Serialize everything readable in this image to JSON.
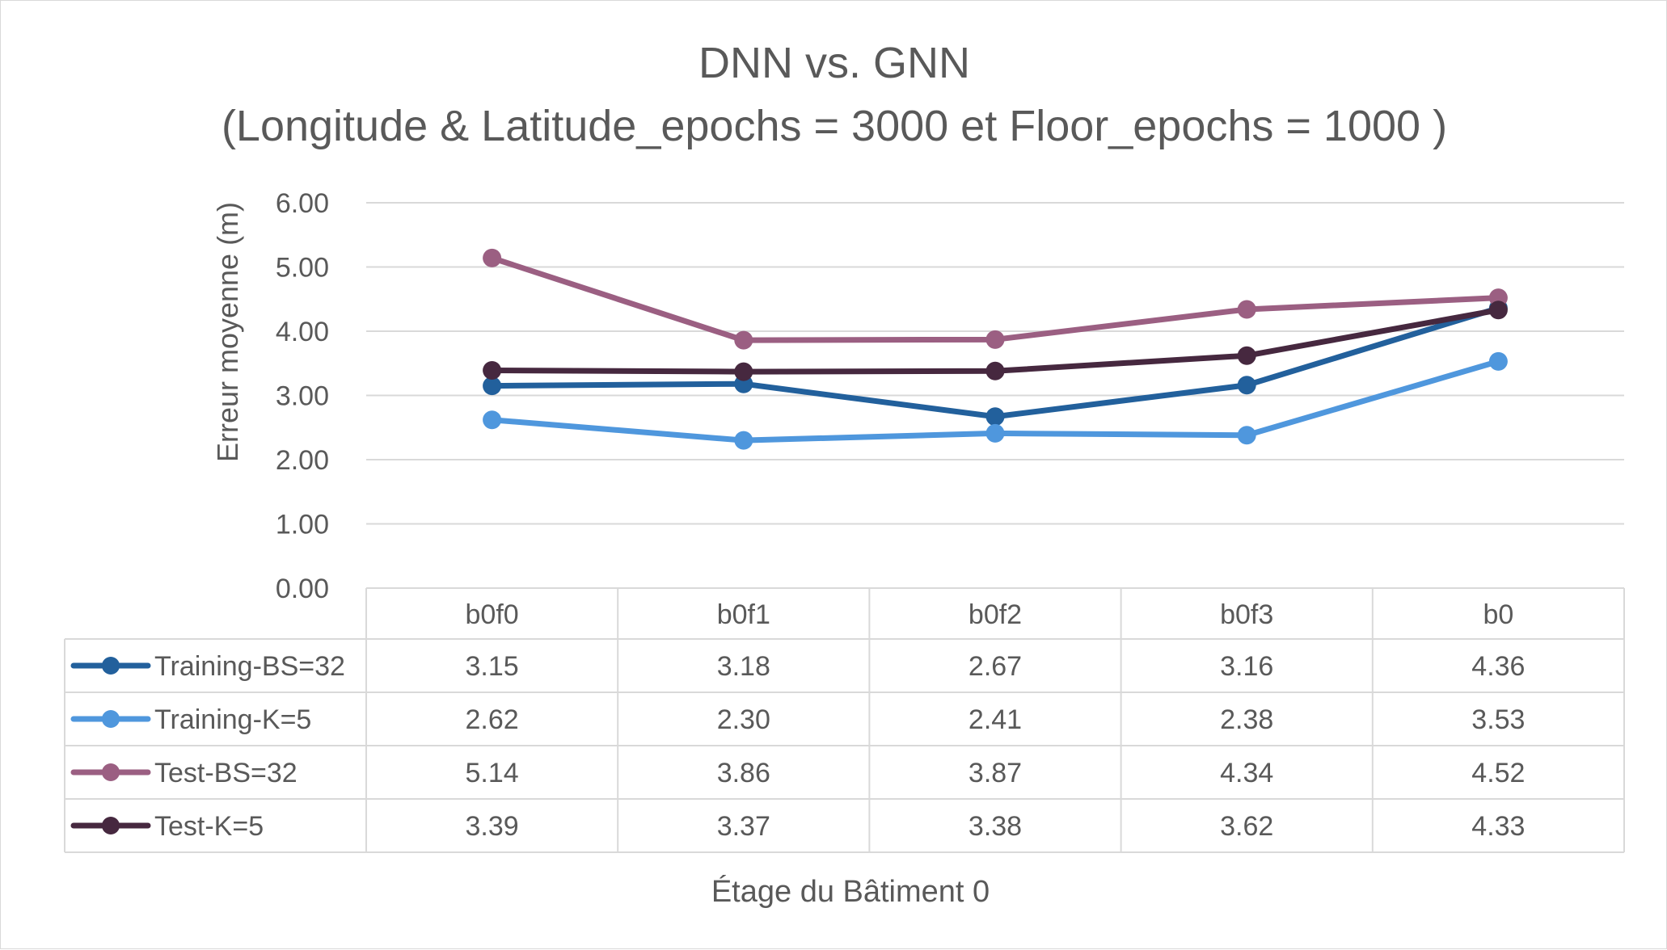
{
  "chart_data": {
    "type": "line",
    "title_line1": "DNN vs. GNN",
    "title_line2": "(Longitude & Latitude_epochs = 3000 et Floor_epochs = 1000 )",
    "xlabel": "Étage du Bâtiment 0",
    "ylabel": "Erreur moyenne (m)",
    "ylim": [
      0,
      6
    ],
    "yticks": [
      "0.00",
      "1.00",
      "2.00",
      "3.00",
      "4.00",
      "5.00",
      "6.00"
    ],
    "grid": true,
    "legend": "data-table",
    "categories": [
      "b0f0",
      "b0f1",
      "b0f2",
      "b0f3",
      "b0"
    ],
    "series": [
      {
        "name": "Training-BS=32",
        "color": "#22609c",
        "values": [
          3.15,
          3.18,
          2.67,
          3.16,
          4.36
        ],
        "labels": [
          "3.15",
          "3.18",
          "2.67",
          "3.16",
          "4.36"
        ]
      },
      {
        "name": "Training-K=5",
        "color": "#4f97dd",
        "values": [
          2.62,
          2.3,
          2.41,
          2.38,
          3.53
        ],
        "labels": [
          "2.62",
          "2.30",
          "2.41",
          "2.38",
          "3.53"
        ]
      },
      {
        "name": "Test-BS=32",
        "color": "#9b5f82",
        "values": [
          5.14,
          3.86,
          3.87,
          4.34,
          4.52
        ],
        "labels": [
          "5.14",
          "3.86",
          "3.87",
          "4.34",
          "4.52"
        ]
      },
      {
        "name": "Test-K=5",
        "color": "#46283f",
        "values": [
          3.39,
          3.37,
          3.38,
          3.62,
          4.33
        ],
        "labels": [
          "3.39",
          "3.37",
          "3.38",
          "3.62",
          "4.33"
        ]
      }
    ]
  }
}
